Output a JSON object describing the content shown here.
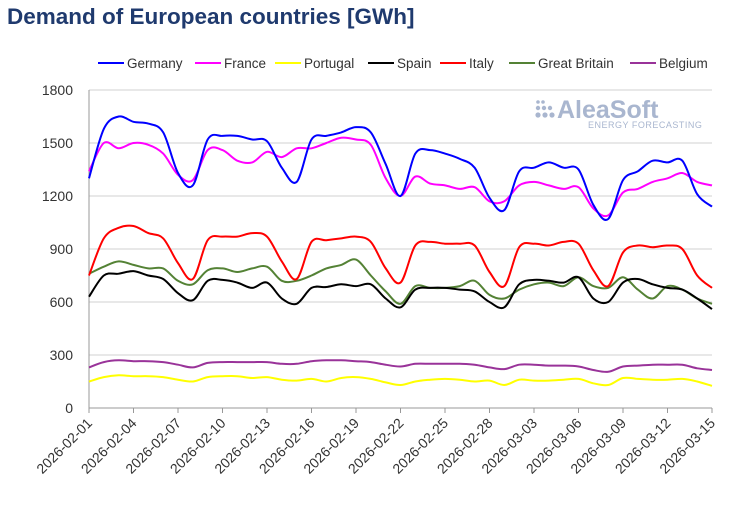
{
  "chart_data": {
    "type": "line",
    "title": "Demand of European countries [GWh]",
    "xlabel": "",
    "ylabel": "",
    "ylim": [
      0,
      1800
    ],
    "yticks": [
      0,
      300,
      600,
      900,
      1200,
      1500,
      1800
    ],
    "grid": true,
    "legend_position": "top",
    "x": [
      "2026-02-01",
      "2026-02-02",
      "2026-02-03",
      "2026-02-04",
      "2026-02-05",
      "2026-02-06",
      "2026-02-07",
      "2026-02-08",
      "2026-02-09",
      "2026-02-10",
      "2026-02-11",
      "2026-02-12",
      "2026-02-13",
      "2026-02-14",
      "2026-02-15",
      "2026-02-16",
      "2026-02-17",
      "2026-02-18",
      "2026-02-19",
      "2026-02-20",
      "2026-02-21",
      "2026-02-22",
      "2026-02-23",
      "2026-02-24",
      "2026-02-25",
      "2026-02-26",
      "2026-02-27",
      "2026-02-28",
      "2026-03-01",
      "2026-03-02",
      "2026-03-03",
      "2026-03-04",
      "2026-03-05",
      "2026-03-06",
      "2026-03-07",
      "2026-03-08",
      "2026-03-09",
      "2026-03-10",
      "2026-03-11",
      "2026-03-12",
      "2026-03-13",
      "2026-03-14",
      "2026-03-15"
    ],
    "xtick_labels": [
      "2026-02-01",
      "2026-02-04",
      "2026-02-07",
      "2026-02-10",
      "2026-02-13",
      "2026-02-16",
      "2026-02-19",
      "2026-02-22",
      "2026-02-25",
      "2026-02-28",
      "2026-03-03",
      "2026-03-06",
      "2026-03-09",
      "2026-03-12",
      "2026-03-15"
    ],
    "series": [
      {
        "name": "Germany",
        "color": "#0000ff",
        "values": [
          1300,
          1580,
          1650,
          1620,
          1610,
          1560,
          1330,
          1260,
          1520,
          1540,
          1540,
          1520,
          1510,
          1360,
          1280,
          1520,
          1540,
          1560,
          1590,
          1560,
          1380,
          1200,
          1440,
          1460,
          1440,
          1410,
          1360,
          1190,
          1120,
          1340,
          1360,
          1390,
          1360,
          1350,
          1150,
          1070,
          1290,
          1340,
          1400,
          1390,
          1400,
          1210,
          1140
        ]
      },
      {
        "name": "France",
        "color": "#ff00ff",
        "values": [
          1340,
          1500,
          1470,
          1500,
          1490,
          1440,
          1320,
          1290,
          1460,
          1460,
          1400,
          1390,
          1450,
          1420,
          1470,
          1470,
          1500,
          1530,
          1520,
          1490,
          1300,
          1200,
          1310,
          1270,
          1260,
          1240,
          1250,
          1170,
          1170,
          1260,
          1280,
          1260,
          1240,
          1250,
          1130,
          1090,
          1220,
          1240,
          1280,
          1300,
          1330,
          1280,
          1260
        ]
      },
      {
        "name": "Portugal",
        "color": "#ffff00",
        "values": [
          150,
          175,
          185,
          180,
          180,
          175,
          160,
          150,
          175,
          180,
          180,
          170,
          175,
          160,
          155,
          165,
          150,
          170,
          175,
          165,
          145,
          130,
          150,
          160,
          165,
          160,
          150,
          155,
          130,
          160,
          155,
          155,
          160,
          165,
          140,
          130,
          170,
          165,
          160,
          160,
          165,
          150,
          125
        ]
      },
      {
        "name": "Spain",
        "color": "#000000",
        "values": [
          630,
          750,
          760,
          775,
          750,
          730,
          650,
          610,
          720,
          725,
          710,
          680,
          710,
          620,
          590,
          680,
          685,
          700,
          690,
          700,
          620,
          570,
          670,
          680,
          680,
          670,
          660,
          600,
          570,
          700,
          725,
          720,
          710,
          740,
          620,
          600,
          710,
          730,
          700,
          680,
          670,
          620,
          560
        ]
      },
      {
        "name": "Italy",
        "color": "#ff0000",
        "values": [
          750,
          960,
          1020,
          1030,
          990,
          960,
          820,
          730,
          950,
          970,
          970,
          990,
          970,
          830,
          730,
          940,
          950,
          960,
          970,
          940,
          790,
          710,
          920,
          940,
          930,
          930,
          920,
          770,
          690,
          910,
          930,
          920,
          940,
          930,
          780,
          690,
          880,
          920,
          910,
          920,
          900,
          750,
          680
        ]
      },
      {
        "name": "Great Britain",
        "color": "#548235",
        "values": [
          760,
          800,
          830,
          810,
          790,
          790,
          720,
          700,
          780,
          790,
          770,
          790,
          800,
          720,
          720,
          750,
          790,
          810,
          840,
          750,
          660,
          590,
          690,
          680,
          680,
          690,
          720,
          640,
          620,
          670,
          700,
          710,
          690,
          740,
          690,
          680,
          740,
          670,
          620,
          690,
          670,
          620,
          590
        ]
      },
      {
        "name": "Belgium",
        "color": "#993399",
        "values": [
          230,
          260,
          270,
          265,
          265,
          260,
          245,
          230,
          255,
          260,
          260,
          260,
          260,
          250,
          250,
          265,
          270,
          270,
          265,
          260,
          245,
          235,
          250,
          250,
          250,
          250,
          245,
          230,
          220,
          245,
          245,
          240,
          240,
          235,
          215,
          205,
          235,
          240,
          245,
          245,
          245,
          225,
          215
        ]
      }
    ]
  },
  "watermark": {
    "name": "AleaSoft",
    "tagline": "ENERGY FORECASTING"
  }
}
